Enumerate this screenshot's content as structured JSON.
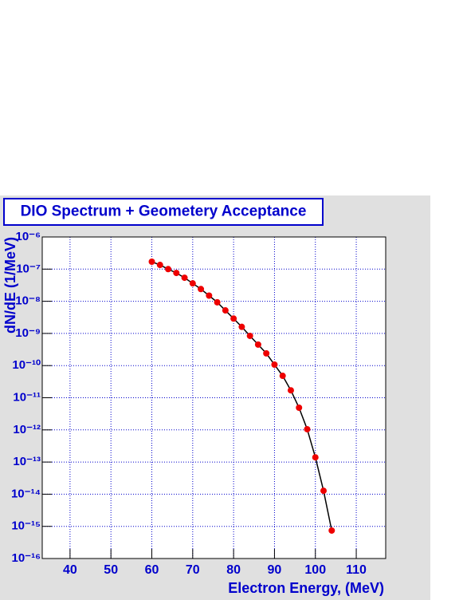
{
  "chart_data": {
    "type": "line",
    "title": "DIO Spectrum + Geometery Acceptance",
    "x_label": "Electron Energy, (MeV)",
    "y_label": "dN/dE (1/MeV)",
    "x": [
      60,
      62,
      64,
      66,
      68,
      70,
      72,
      74,
      76,
      78,
      80,
      82,
      84,
      86,
      88,
      90,
      92,
      94,
      96,
      98,
      100,
      102,
      104
    ],
    "series": [
      {
        "color": "#000000",
        "marker_color": "#ee0000",
        "values": [
          1.7e-07,
          1.35e-07,
          1e-07,
          7.6e-08,
          5.4e-08,
          3.6e-08,
          2.4e-08,
          1.5e-08,
          9.3e-09,
          5.2e-09,
          2.9e-09,
          1.6e-09,
          8.4e-10,
          4.5e-10,
          2.4e-10,
          1.07e-10,
          4.8e-11,
          1.7e-11,
          4.9e-12,
          1.05e-12,
          1.4e-13,
          1.28e-14,
          7.4e-16
        ]
      }
    ],
    "xlim": [
      33.2,
      117.2
    ],
    "xticks": [
      40,
      50,
      60,
      70,
      80,
      90,
      100,
      110
    ],
    "ylim": [
      1e-16,
      1e-06
    ],
    "log_y": true,
    "yticks": [
      {
        "value": 1e-16,
        "label": "10⁻¹⁶"
      },
      {
        "value": 1e-15,
        "label": "10⁻¹⁵"
      },
      {
        "value": 1e-14,
        "label": "10⁻¹⁴"
      },
      {
        "value": 1e-13,
        "label": "10⁻¹³"
      },
      {
        "value": 1e-12,
        "label": "10⁻¹²"
      },
      {
        "value": 1e-11,
        "label": "10⁻¹¹"
      },
      {
        "value": 1e-10,
        "label": "10⁻¹⁰"
      },
      {
        "value": 1e-09,
        "label": "10⁻⁹"
      },
      {
        "value": 1e-08,
        "label": "10⁻⁸"
      },
      {
        "value": 1e-07,
        "label": "10⁻⁷"
      },
      {
        "value": 1e-06,
        "label": "10⁻⁶"
      }
    ],
    "grid": true,
    "text_color": "#0000cc",
    "grid_color": "#0000cc"
  }
}
